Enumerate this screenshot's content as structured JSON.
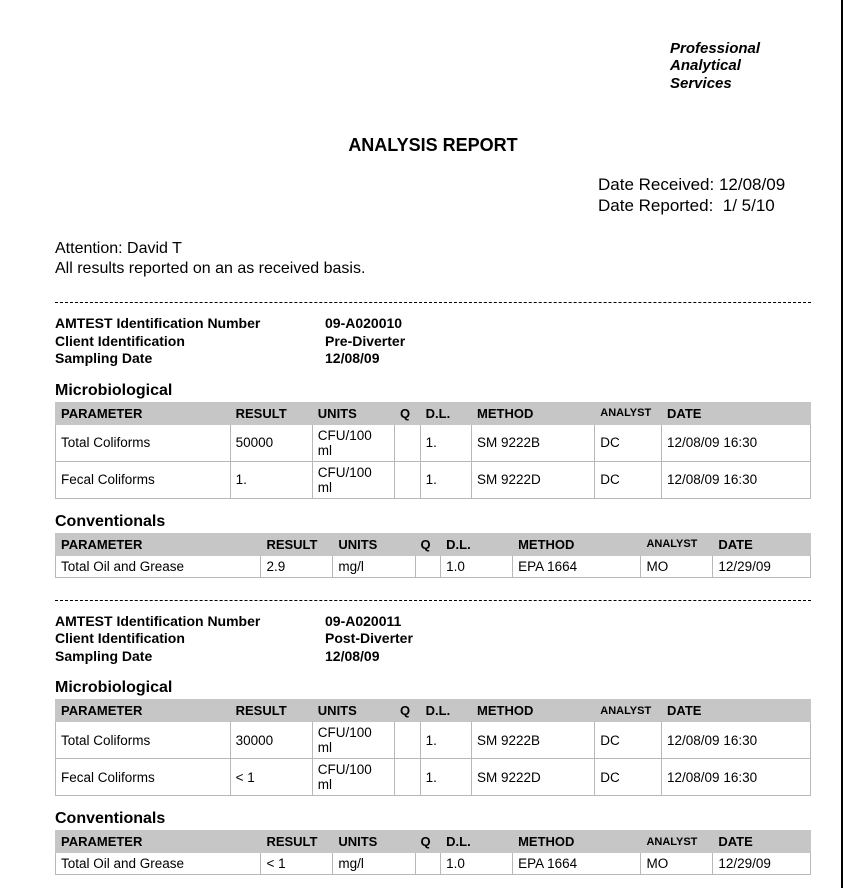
{
  "company": {
    "line1": "Professional",
    "line2": "Analytical",
    "line3": "Services"
  },
  "title": "ANALYSIS REPORT",
  "dates": {
    "received_label": "Date Received:",
    "received_value": "12/08/09",
    "reported_label": "Date Reported:",
    "reported_value": "1/ 5/10"
  },
  "attention": {
    "line1": "Attention:  David T",
    "line2": "All results reported on an as received basis."
  },
  "colors": {
    "header_bg": "#c6c6c6",
    "border": "#b8b8b8",
    "text": "#000000",
    "background": "#ffffff"
  },
  "columns": {
    "parameter": "PARAMETER",
    "result": "RESULT",
    "units": "UNITS",
    "q": "Q",
    "dl": "D.L.",
    "method": "METHOD",
    "analyst": "ANALYST",
    "date": "DATE"
  },
  "labels": {
    "amtest_id": "AMTEST Identification Number",
    "client_id": "Client Identification",
    "sampling_date": "Sampling Date",
    "microbiological": "Microbiological",
    "conventionals": "Conventionals"
  },
  "samples": [
    {
      "amtest_id": "09-A020010",
      "client_id": "Pre-Diverter",
      "sampling_date": "12/08/09",
      "micro_widths": [
        170,
        80,
        80,
        25,
        50,
        120,
        65,
        145
      ],
      "micro": [
        {
          "parameter": "Total Coliforms",
          "result": "50000",
          "units": "CFU/100 ml",
          "q": "",
          "dl": "1.",
          "method": "SM 9222B",
          "analyst": "DC",
          "date": "12/08/09 16:30"
        },
        {
          "parameter": "Fecal Coliforms",
          "result": "1.",
          "units": "CFU/100 ml",
          "q": "",
          "dl": "1.",
          "method": "SM 9222D",
          "analyst": "DC",
          "date": "12/08/09 16:30"
        }
      ],
      "conv_widths": [
        200,
        70,
        80,
        25,
        70,
        125,
        70,
        95
      ],
      "conv": [
        {
          "parameter": "Total Oil and Grease",
          "result": "2.9",
          "units": "mg/l",
          "q": "",
          "dl": "1.0",
          "method": "EPA 1664",
          "analyst": "MO",
          "date": "12/29/09"
        }
      ]
    },
    {
      "amtest_id": "09-A020011",
      "client_id": "Post-Diverter",
      "sampling_date": "12/08/09",
      "micro_widths": [
        170,
        80,
        80,
        25,
        50,
        120,
        65,
        145
      ],
      "micro": [
        {
          "parameter": "Total Coliforms",
          "result": "30000",
          "units": "CFU/100 ml",
          "q": "",
          "dl": "1.",
          "method": "SM 9222B",
          "analyst": "DC",
          "date": "12/08/09 16:30"
        },
        {
          "parameter": "Fecal Coliforms",
          "result": "< 1",
          "units": "CFU/100 ml",
          "q": "",
          "dl": "1.",
          "method": "SM 9222D",
          "analyst": "DC",
          "date": "12/08/09 16:30"
        }
      ],
      "conv_widths": [
        200,
        70,
        80,
        25,
        70,
        125,
        70,
        95
      ],
      "conv": [
        {
          "parameter": "Total Oil and Grease",
          "result": "< 1",
          "units": "mg/l",
          "q": "",
          "dl": "1.0",
          "method": "EPA 1664",
          "analyst": "MO",
          "date": "12/29/09"
        }
      ]
    }
  ]
}
